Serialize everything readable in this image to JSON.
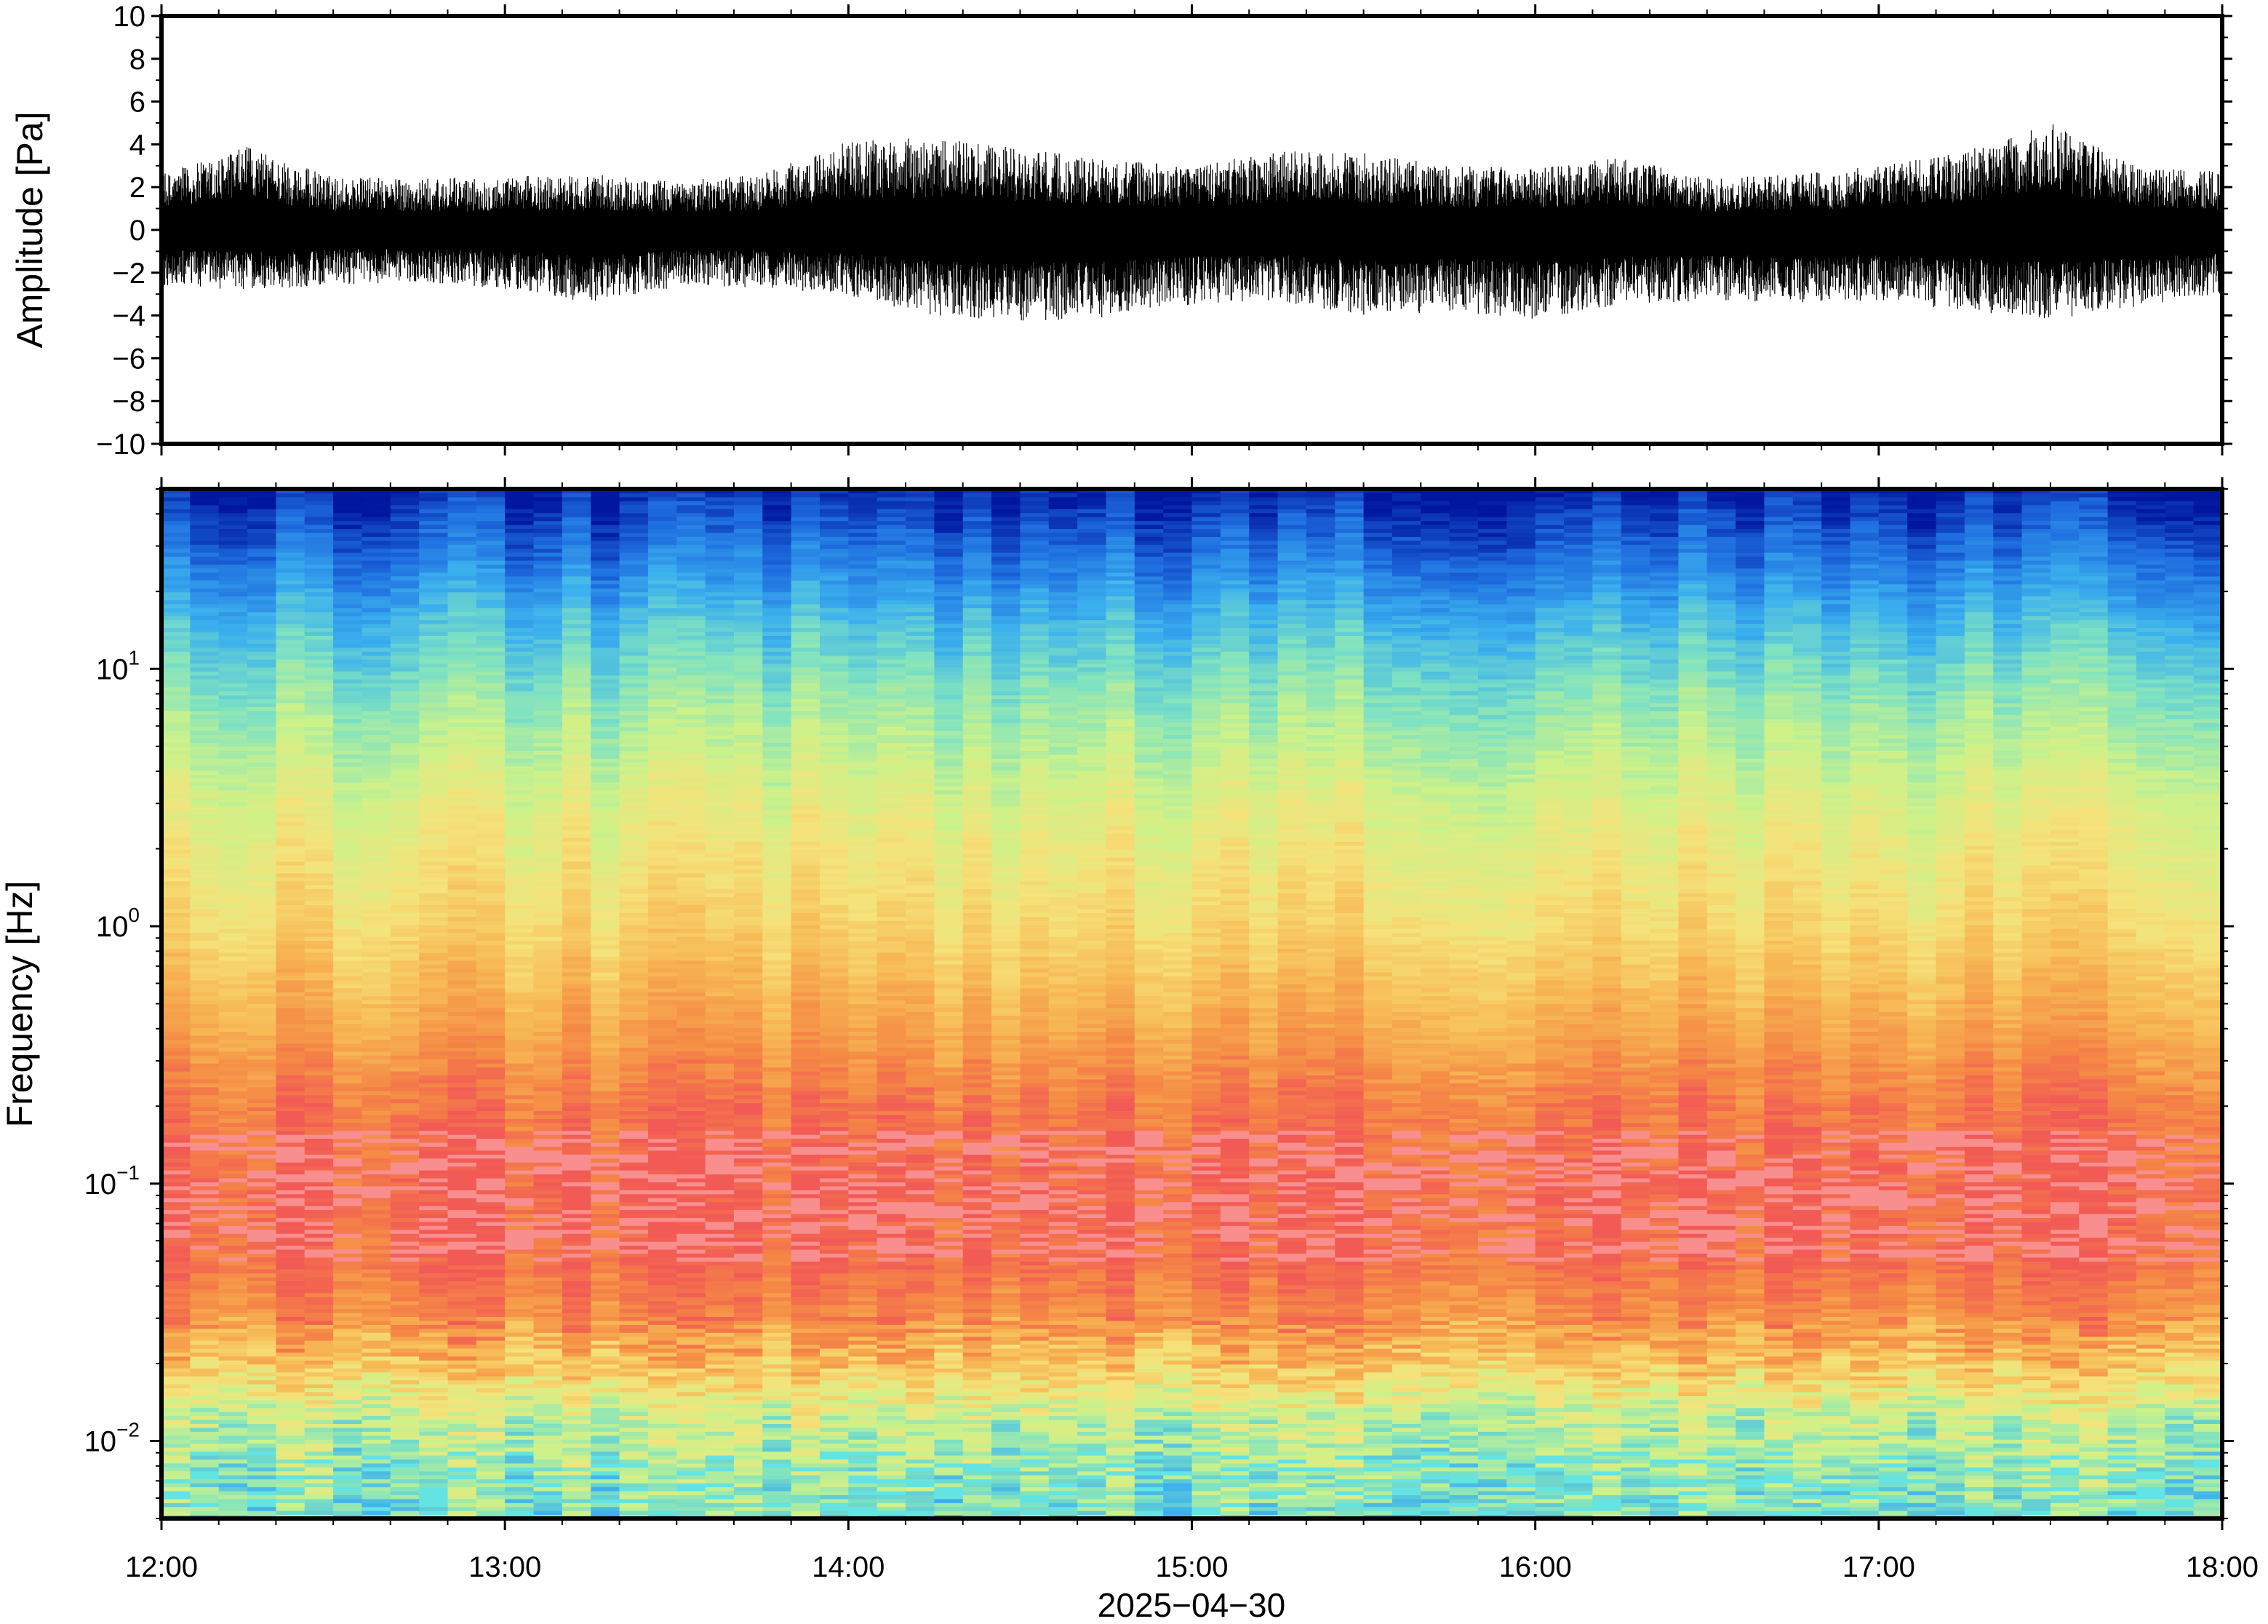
{
  "chart_data": [
    {
      "type": "line",
      "title": "",
      "xlabel": "",
      "ylabel": "Amplitude [Pa]",
      "ylim": [
        -10,
        10
      ],
      "y_ticks": [
        -10,
        -8,
        -6,
        -4,
        -2,
        0,
        2,
        4,
        6,
        8,
        10
      ],
      "y_tick_labels": [
        "−10",
        "−8",
        "−6",
        "−4",
        "−2",
        "0",
        "2",
        "4",
        "6",
        "8",
        "10"
      ],
      "x_range": [
        "12:00",
        "18:00"
      ],
      "grid": false,
      "line_color": "#000000",
      "series": [
        {
          "description_units": "Pa",
          "x": [
            "12:00",
            "12:15",
            "12:30",
            "12:45",
            "13:00",
            "13:15",
            "13:30",
            "13:45",
            "14:00",
            "14:15",
            "14:30",
            "14:45",
            "15:00",
            "15:15",
            "15:30",
            "15:45",
            "16:00",
            "16:15",
            "16:30",
            "16:45",
            "17:00",
            "17:15",
            "17:30",
            "17:45",
            "18:00"
          ],
          "max": [
            2.6,
            3.9,
            2.5,
            2.4,
            2.5,
            2.6,
            2.3,
            2.6,
            4.2,
            4.3,
            3.8,
            3.3,
            3.0,
            3.7,
            3.6,
            3.0,
            2.9,
            3.4,
            2.4,
            2.6,
            3.0,
            3.7,
            5.0,
            3.0,
            2.7
          ],
          "min": [
            -2.7,
            -2.8,
            -2.6,
            -2.4,
            -2.8,
            -3.4,
            -2.7,
            -2.7,
            -3.1,
            -4.0,
            -4.3,
            -4.1,
            -3.5,
            -3.3,
            -4.1,
            -3.8,
            -4.2,
            -3.5,
            -3.3,
            -3.4,
            -3.3,
            -3.8,
            -4.2,
            -3.6,
            -3.0
          ]
        }
      ]
    },
    {
      "type": "heatmap",
      "title": "",
      "xlabel": "2025−04−30",
      "ylabel": "Frequency [Hz]",
      "y_scale": "log",
      "ylim": [
        0.005,
        50
      ],
      "y_ticks": [
        0.01,
        0.1,
        1,
        10
      ],
      "y_tick_labels": [
        {
          "base": "10",
          "exp": "−2"
        },
        {
          "base": "10",
          "exp": "−1"
        },
        {
          "base": "10",
          "exp": "0"
        },
        {
          "base": "10",
          "exp": "1"
        }
      ],
      "x_ticks": [
        "12:00",
        "13:00",
        "14:00",
        "15:00",
        "16:00",
        "17:00",
        "18:00"
      ],
      "x_range": [
        "12:00",
        "18:00"
      ],
      "colormap": [
        "#00169e",
        "#1f6fe0",
        "#3bb0ee",
        "#7ee2c2",
        "#ccf28a",
        "#f6e27a",
        "#f7b955",
        "#f58a45",
        "#f25a55",
        "#f98e8e",
        "#64e3e3"
      ],
      "description_levels": "relative power, 0 = low (blue) … 1 = high (red)",
      "freq_profile": [
        {
          "f": 50,
          "level": 0.02
        },
        {
          "f": 30,
          "level": 0.12
        },
        {
          "f": 15,
          "level": 0.28
        },
        {
          "f": 8,
          "level": 0.4
        },
        {
          "f": 3,
          "level": 0.55
        },
        {
          "f": 1,
          "level": 0.66
        },
        {
          "f": 0.4,
          "level": 0.8
        },
        {
          "f": 0.2,
          "level": 0.92
        },
        {
          "f": 0.1,
          "level": 0.97
        },
        {
          "f": 0.05,
          "level": 0.95
        },
        {
          "f": 0.03,
          "level": 0.86
        },
        {
          "f": 0.02,
          "level": 0.72
        },
        {
          "f": 0.012,
          "level": 0.48
        },
        {
          "f": 0.005,
          "level": 0.38
        }
      ]
    }
  ]
}
